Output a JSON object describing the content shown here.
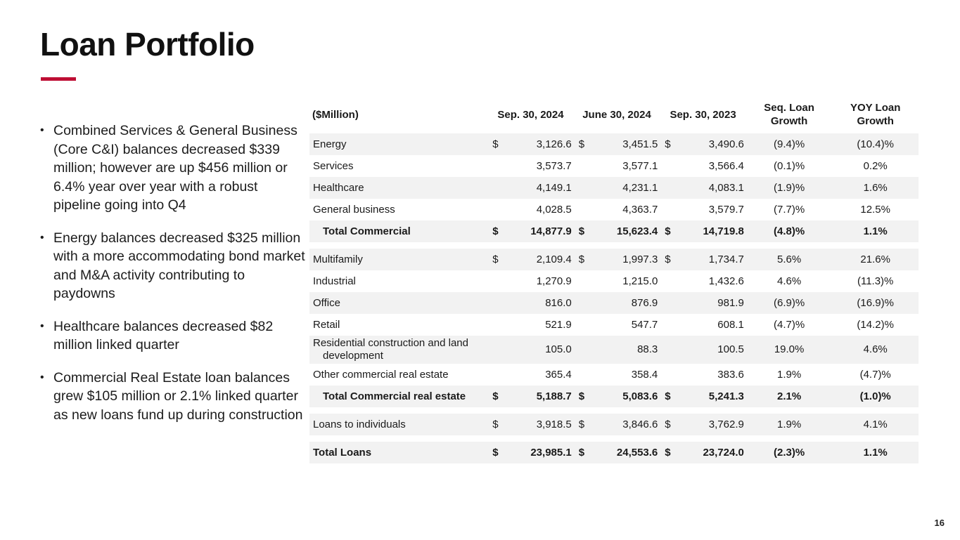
{
  "title": "Loan Portfolio",
  "page_number": "16",
  "colors": {
    "accent_red": "#BE0E34",
    "row_shade": "#F2F2F2"
  },
  "bullets": [
    "Combined Services & General Business (Core C&I) balances decreased $339 million; however are up $456 million or 6.4% year over year with a robust pipeline going into Q4",
    "Energy balances decreased $325 million with a more accommodating bond market and M&A activity contributing to paydowns",
    "Healthcare balances decreased $82 million linked quarter",
    "Commercial Real Estate loan balances grew $105 million or 2.1% linked quarter as new loans fund up during construction"
  ],
  "table": {
    "unit_label": "($Million)",
    "dollar_sign": "$",
    "columns": [
      "Sep. 30, 2024",
      "June 30, 2024",
      "Sep. 30, 2023",
      "Seq. Loan Growth",
      "YOY Loan Growth"
    ],
    "sections": [
      {
        "rows": [
          {
            "label": "Energy",
            "dollar": true,
            "values": [
              "3,126.6",
              "3,451.5",
              "3,490.6"
            ],
            "seq": "(9.4)%",
            "yoy": "(10.4)%",
            "bold": false,
            "indent": false,
            "shaded": true
          },
          {
            "label": "Services",
            "dollar": false,
            "values": [
              "3,573.7",
              "3,577.1",
              "3,566.4"
            ],
            "seq": "(0.1)%",
            "yoy": "0.2%",
            "bold": false,
            "indent": false,
            "shaded": false
          },
          {
            "label": "Healthcare",
            "dollar": false,
            "values": [
              "4,149.1",
              "4,231.1",
              "4,083.1"
            ],
            "seq": "(1.9)%",
            "yoy": "1.6%",
            "bold": false,
            "indent": false,
            "shaded": true
          },
          {
            "label": "General business",
            "dollar": false,
            "values": [
              "4,028.5",
              "4,363.7",
              "3,579.7"
            ],
            "seq": "(7.7)%",
            "yoy": "12.5%",
            "bold": false,
            "indent": false,
            "shaded": false
          },
          {
            "label": "Total Commercial",
            "dollar": true,
            "values": [
              "14,877.9",
              "15,623.4",
              "14,719.8"
            ],
            "seq": "(4.8)%",
            "yoy": "1.1%",
            "bold": true,
            "indent": true,
            "shaded": true
          }
        ]
      },
      {
        "rows": [
          {
            "label": "Multifamily",
            "dollar": true,
            "values": [
              "2,109.4",
              "1,997.3",
              "1,734.7"
            ],
            "seq": "5.6%",
            "yoy": "21.6%",
            "bold": false,
            "indent": false,
            "shaded": true
          },
          {
            "label": "Industrial",
            "dollar": false,
            "values": [
              "1,270.9",
              "1,215.0",
              "1,432.6"
            ],
            "seq": "4.6%",
            "yoy": "(11.3)%",
            "bold": false,
            "indent": false,
            "shaded": false
          },
          {
            "label": "Office",
            "dollar": false,
            "values": [
              "816.0",
              "876.9",
              "981.9"
            ],
            "seq": "(6.9)%",
            "yoy": "(16.9)%",
            "bold": false,
            "indent": false,
            "shaded": true
          },
          {
            "label": "Retail",
            "dollar": false,
            "values": [
              "521.9",
              "547.7",
              "608.1"
            ],
            "seq": "(4.7)%",
            "yoy": "(14.2)%",
            "bold": false,
            "indent": false,
            "shaded": false
          },
          {
            "label": "Residential construction and land development",
            "dollar": false,
            "values": [
              "105.0",
              "88.3",
              "100.5"
            ],
            "seq": "19.0%",
            "yoy": "4.6%",
            "bold": false,
            "indent": false,
            "shaded": true
          },
          {
            "label": "Other commercial real estate",
            "dollar": false,
            "values": [
              "365.4",
              "358.4",
              "383.6"
            ],
            "seq": "1.9%",
            "yoy": "(4.7)%",
            "bold": false,
            "indent": false,
            "shaded": false
          },
          {
            "label": "Total Commercial real estate",
            "dollar": true,
            "values": [
              "5,188.7",
              "5,083.6",
              "5,241.3"
            ],
            "seq": "2.1%",
            "yoy": "(1.0)%",
            "bold": true,
            "indent": true,
            "shaded": true
          }
        ]
      },
      {
        "rows": [
          {
            "label": "Loans to individuals",
            "dollar": true,
            "values": [
              "3,918.5",
              "3,846.6",
              "3,762.9"
            ],
            "seq": "1.9%",
            "yoy": "4.1%",
            "bold": false,
            "indent": false,
            "shaded": true
          }
        ]
      },
      {
        "rows": [
          {
            "label": "Total Loans",
            "dollar": true,
            "values": [
              "23,985.1",
              "24,553.6",
              "23,724.0"
            ],
            "seq": "(2.3)%",
            "yoy": "1.1%",
            "bold": true,
            "indent": false,
            "shaded": true
          }
        ]
      }
    ]
  }
}
